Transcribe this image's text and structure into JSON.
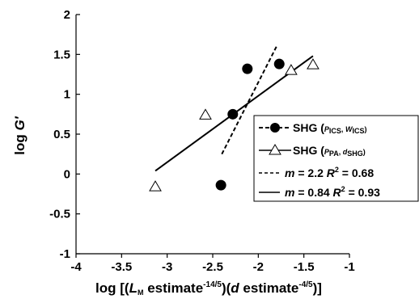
{
  "chart_data": {
    "type": "scatter",
    "xlabel": {
      "prefix": "log [(",
      "L": "L",
      "L_sub": "M",
      "mid1": " estimate",
      "exp1": "-14/5",
      "mid2": ")(",
      "d": "d",
      "mid3": " estimate",
      "exp2": "-4/5",
      "suffix": ")]"
    },
    "ylabel": {
      "prefix": "log ",
      "symbol": "G′"
    },
    "xlim": [
      -4,
      -1
    ],
    "ylim": [
      -1,
      2
    ],
    "xticks": [
      -4,
      -3.5,
      -3,
      -2.5,
      -2,
      -1.5,
      -1
    ],
    "xtick_labels": [
      "-4",
      "-3.5",
      "-3",
      "-2.5",
      "-2",
      "-1.5",
      "-1"
    ],
    "yticks": [
      -1,
      -0.5,
      0,
      0.5,
      1,
      1.5,
      2
    ],
    "ytick_labels": [
      "-1",
      "-0.5",
      "0",
      "0.5",
      "1",
      "1.5",
      "2"
    ],
    "grid": false,
    "legend_position": "right",
    "series": [
      {
        "marker": "filled-circle",
        "legend": {
          "main": "SHG (",
          "s1": "P",
          "s1sub": "ICS",
          "sep": ", ",
          "s2": "W",
          "s2sub": "ICS",
          "end": ")"
        },
        "points": [
          {
            "x": -2.12,
            "y": 1.32
          },
          {
            "x": -1.77,
            "y": 1.38
          },
          {
            "x": -2.28,
            "y": 0.75
          },
          {
            "x": -2.41,
            "y": -0.14
          }
        ]
      },
      {
        "marker": "open-triangle",
        "legend": {
          "main": "SHG (",
          "s1": "P",
          "s1sub": "PA",
          "sep": ", ",
          "s2": "d",
          "s2sub": "SHG",
          "end": ")"
        },
        "points": [
          {
            "x": -3.13,
            "y": -0.16
          },
          {
            "x": -2.58,
            "y": 0.74
          },
          {
            "x": -1.64,
            "y": 1.3
          },
          {
            "x": -1.4,
            "y": 1.37
          }
        ]
      }
    ],
    "fits": [
      {
        "style": "dashed",
        "x": [
          -2.4,
          -1.8
        ],
        "y": [
          0.25,
          1.6
        ],
        "legend": {
          "m": "m",
          "eq1": " = 2.2  ",
          "R": "R",
          "exp": "2",
          "eq2": " = 0.68"
        }
      },
      {
        "style": "solid",
        "x": [
          -3.13,
          -1.4
        ],
        "y": [
          0.04,
          1.48
        ],
        "legend": {
          "m": "m",
          "eq1": " = 0.84  ",
          "R": "R",
          "exp": "2",
          "eq2": " = 0.93"
        }
      }
    ]
  }
}
